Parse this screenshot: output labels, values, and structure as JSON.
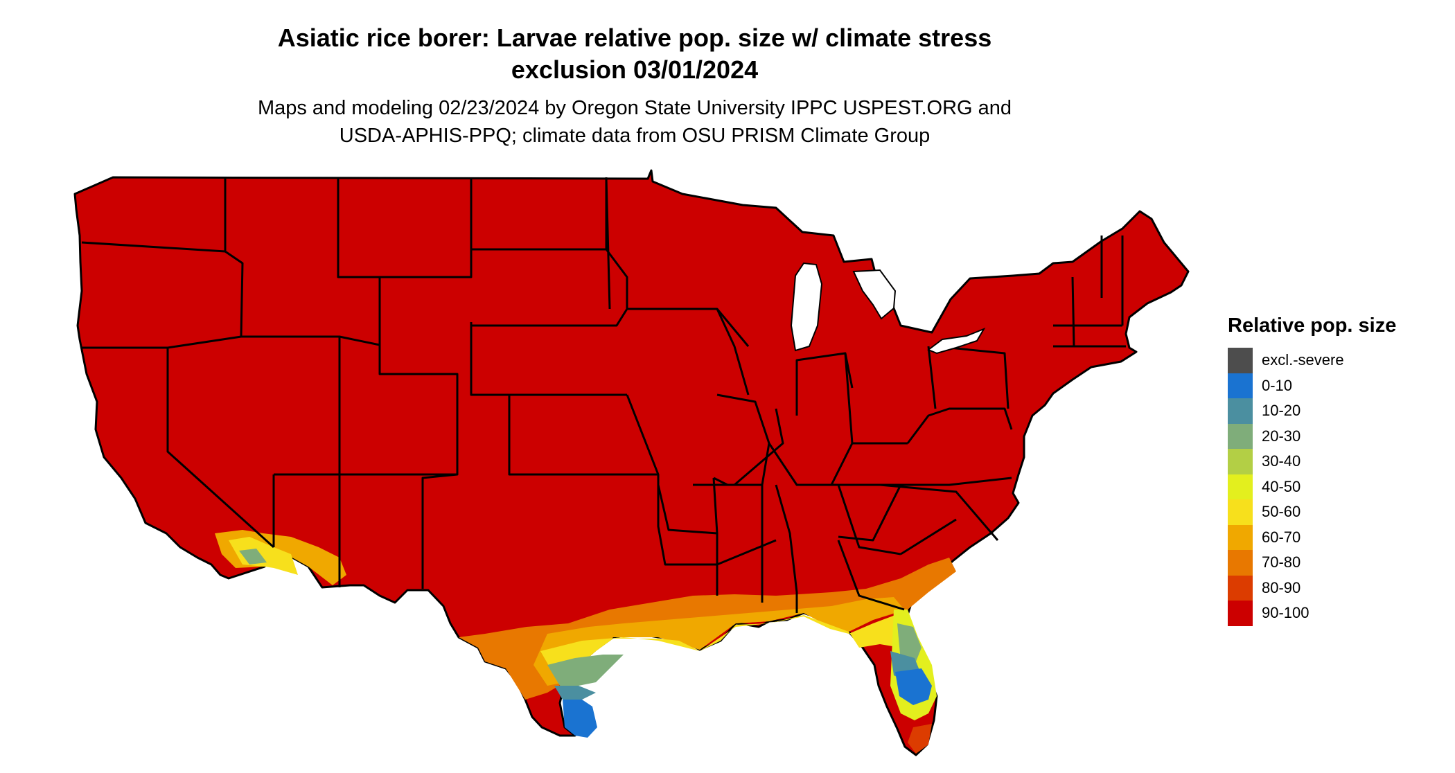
{
  "title_line1": "Asiatic rice borer: Larvae relative pop. size w/ climate stress",
  "title_line2": "exclusion 03/01/2024",
  "subtitle_line1": "Maps and modeling 02/23/2024 by Oregon State University IPPC USPEST.ORG and",
  "subtitle_line2": "USDA-APHIS-PPQ; climate data from OSU PRISM Climate Group",
  "legend": {
    "title": "Relative pop. size",
    "items": [
      {
        "label": "excl.-severe",
        "color": "#4d4d4d"
      },
      {
        "label": "0-10",
        "color": "#1a73d1"
      },
      {
        "label": "10-20",
        "color": "#4b8fa0"
      },
      {
        "label": "20-30",
        "color": "#7fad7a"
      },
      {
        "label": "30-40",
        "color": "#b3cf45"
      },
      {
        "label": "40-50",
        "color": "#e3ef1e"
      },
      {
        "label": "50-60",
        "color": "#f7e01c"
      },
      {
        "label": "60-70",
        "color": "#f0a800"
      },
      {
        "label": "70-80",
        "color": "#e87800"
      },
      {
        "label": "80-90",
        "color": "#dc3c00"
      },
      {
        "label": "90-100",
        "color": "#cc0000"
      }
    ]
  },
  "map_colors": {
    "base": "#cc0000",
    "border": "#000000"
  }
}
